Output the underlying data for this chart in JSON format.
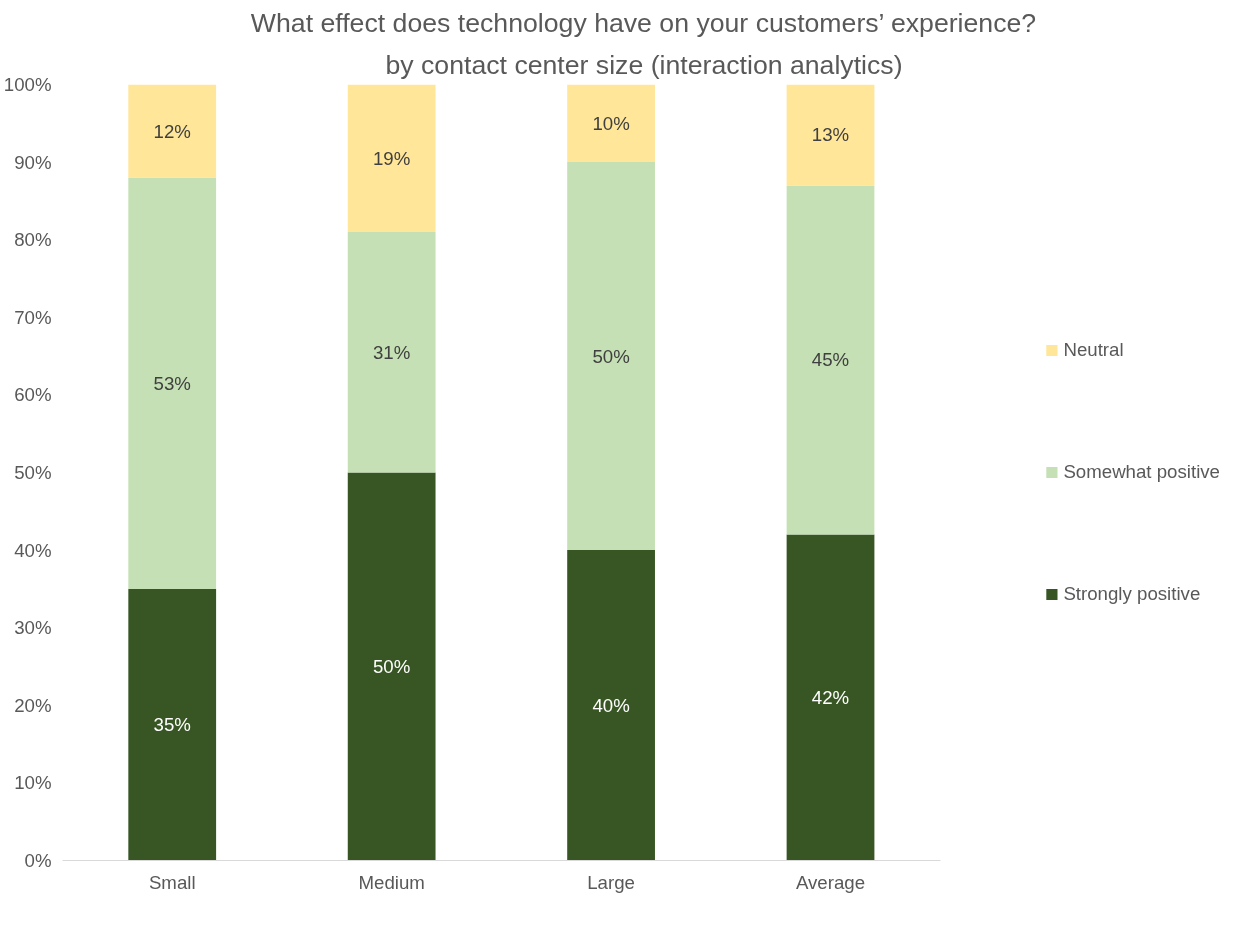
{
  "chart_data": {
    "type": "bar",
    "stacked": true,
    "title": "What effect does technology have on your customers’ experience?",
    "subtitle": "by contact center size (interaction analytics)",
    "categories": [
      "Small",
      "Medium",
      "Large",
      "Average"
    ],
    "series": [
      {
        "name": "Strongly positive",
        "color": "#375623",
        "values": [
          35,
          50,
          40,
          42
        ],
        "value_labels": [
          "35%",
          "50%",
          "40%",
          "42%"
        ]
      },
      {
        "name": "Somewhat positive",
        "color": "#c5e0b4",
        "values": [
          53,
          31,
          50,
          45
        ],
        "value_labels": [
          "53%",
          "31%",
          "50%",
          "45%"
        ]
      },
      {
        "name": "Neutral",
        "color": "#ffe699",
        "values": [
          12,
          19,
          10,
          13
        ],
        "value_labels": [
          "12%",
          "19%",
          "10%",
          "13%"
        ]
      }
    ],
    "ylim": [
      0,
      100
    ],
    "yticks": [
      {
        "value": 0,
        "label": "0%"
      },
      {
        "value": 10,
        "label": "10%"
      },
      {
        "value": 20,
        "label": "20%"
      },
      {
        "value": 30,
        "label": "30%"
      },
      {
        "value": 40,
        "label": "40%"
      },
      {
        "value": 50,
        "label": "50%"
      },
      {
        "value": 60,
        "label": "60%"
      },
      {
        "value": 70,
        "label": "70%"
      },
      {
        "value": 80,
        "label": "80%"
      },
      {
        "value": 90,
        "label": "90%"
      },
      {
        "value": 100,
        "label": "100%"
      }
    ],
    "legend": "right",
    "grid": false
  }
}
